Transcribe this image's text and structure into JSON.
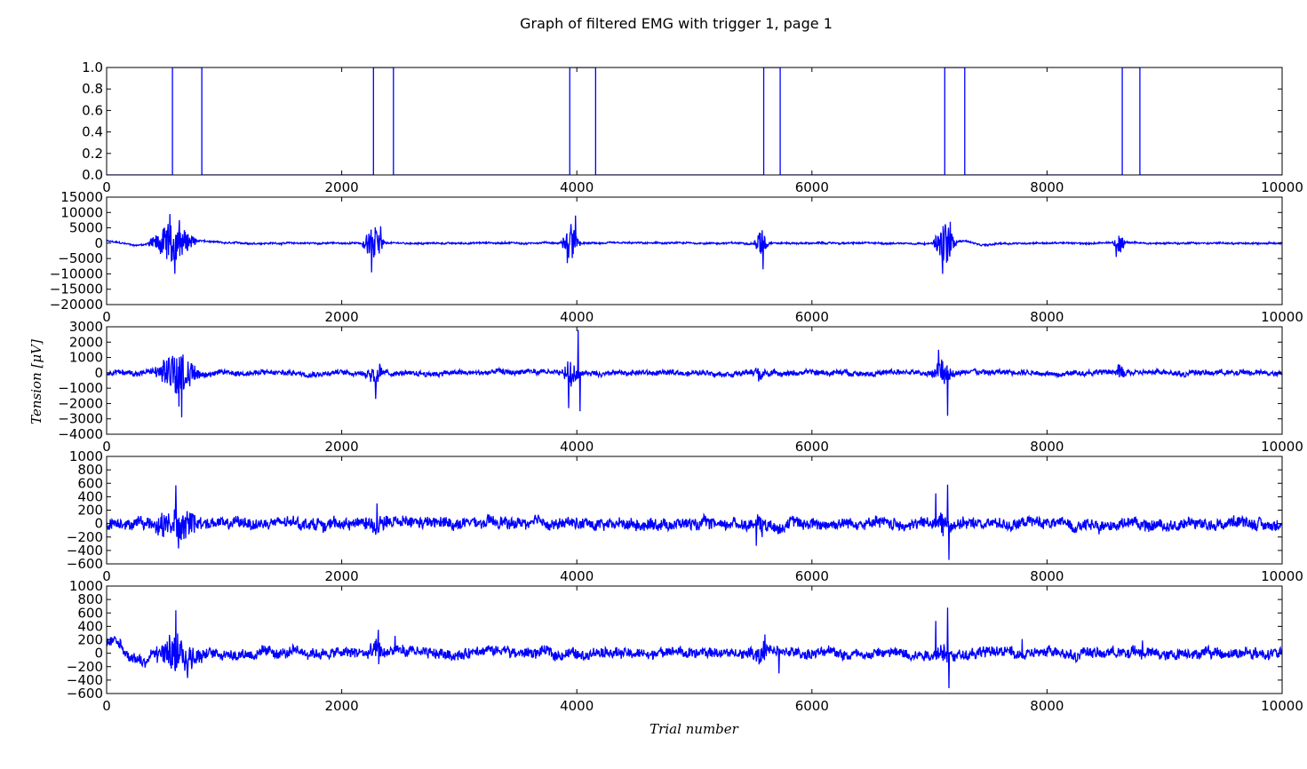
{
  "chart_data": {
    "type": "line",
    "title": "Graph of filtered EMG with trigger 1, page 1",
    "xlabel": "Trial number",
    "ylabel": "Tension [μV]",
    "grid": false,
    "line_color": "#0000ff",
    "xlim": [
      0,
      10000
    ],
    "x_ticks": [
      "0",
      "2000",
      "4000",
      "6000",
      "8000",
      "10000"
    ],
    "subplots": [
      {
        "name": "trigger",
        "ylim": [
          0,
          1
        ],
        "y_ticks": [
          "0.0",
          "0.2",
          "0.4",
          "0.6",
          "0.8",
          "1.0"
        ],
        "pulses": [
          [
            560,
            810
          ],
          [
            2270,
            2440
          ],
          [
            3940,
            4160
          ],
          [
            5590,
            5730
          ],
          [
            7130,
            7300
          ],
          [
            8640,
            8790
          ]
        ]
      },
      {
        "name": "emg-channel-1",
        "ylim": [
          -20000,
          15000
        ],
        "y_ticks": [
          "15000",
          "10000",
          "5000",
          "0",
          "-5000",
          "-10000",
          "-15000",
          "-20000"
        ],
        "baseline_noise": 250,
        "drift": [
          [
            0,
            700
          ],
          [
            250,
            -700
          ],
          [
            500,
            400
          ],
          [
            800,
            800
          ],
          [
            1000,
            0
          ],
          [
            7200,
            0
          ],
          [
            7300,
            900
          ],
          [
            7450,
            -700
          ],
          [
            7600,
            0
          ],
          [
            10000,
            0
          ]
        ],
        "bursts": [
          [
            560,
            230,
            7000
          ],
          [
            2270,
            110,
            6000
          ],
          [
            3950,
            90,
            6500
          ],
          [
            5570,
            70,
            5000
          ],
          [
            7130,
            110,
            7500
          ],
          [
            8620,
            70,
            3500
          ]
        ],
        "spikes": [
          [
            540,
            9500
          ],
          [
            550,
            -6000
          ],
          [
            580,
            -10000
          ],
          [
            620,
            7500
          ],
          [
            2255,
            -9500
          ],
          [
            2330,
            5500
          ],
          [
            3920,
            -6500
          ],
          [
            3990,
            9000
          ],
          [
            5585,
            -8500
          ],
          [
            7110,
            -10000
          ],
          [
            7175,
            7000
          ],
          [
            8590,
            -4500
          ]
        ]
      },
      {
        "name": "emg-channel-2",
        "ylim": [
          -4000,
          3000
        ],
        "y_ticks": [
          "3000",
          "2000",
          "1000",
          "0",
          "-1000",
          "-2000",
          "-3000",
          "-4000"
        ],
        "baseline_noise": 150,
        "drift": [],
        "bursts": [
          [
            600,
            230,
            1400
          ],
          [
            2290,
            110,
            900
          ],
          [
            3950,
            90,
            1000
          ],
          [
            5560,
            80,
            500
          ],
          [
            7110,
            110,
            1000
          ],
          [
            8620,
            70,
            500
          ]
        ],
        "spikes": [
          [
            640,
            -2900
          ],
          [
            615,
            -2200
          ],
          [
            560,
            1100
          ],
          [
            2290,
            -1700
          ],
          [
            3930,
            -2300
          ],
          [
            4010,
            2800
          ],
          [
            4025,
            -2500
          ],
          [
            7155,
            -2800
          ],
          [
            7075,
            1500
          ]
        ]
      },
      {
        "name": "emg-channel-3",
        "ylim": [
          -600,
          1000
        ],
        "y_ticks": [
          "1000",
          "800",
          "600",
          "400",
          "200",
          "0",
          "-200",
          "-400",
          "-600"
        ],
        "baseline_noise": 75,
        "drift": [],
        "bursts": [
          [
            600,
            250,
            280
          ],
          [
            2290,
            120,
            140
          ],
          [
            5560,
            80,
            120
          ],
          [
            7120,
            80,
            150
          ]
        ],
        "spikes": [
          [
            590,
            570
          ],
          [
            610,
            -370
          ],
          [
            7055,
            450
          ],
          [
            7155,
            580
          ],
          [
            7165,
            -540
          ],
          [
            5525,
            -330
          ],
          [
            2300,
            300
          ]
        ]
      },
      {
        "name": "emg-channel-4",
        "ylim": [
          -600,
          1000
        ],
        "y_ticks": [
          "1000",
          "800",
          "600",
          "400",
          "200",
          "0",
          "-200",
          "-400",
          "-600"
        ],
        "baseline_noise": 70,
        "drift": [
          [
            0,
            130
          ],
          [
            120,
            130
          ],
          [
            180,
            -100
          ],
          [
            300,
            -100
          ],
          [
            400,
            0
          ],
          [
            10000,
            0
          ]
        ],
        "bursts": [
          [
            600,
            250,
            300
          ],
          [
            2300,
            110,
            140
          ],
          [
            5580,
            80,
            150
          ],
          [
            7120,
            80,
            150
          ]
        ],
        "spikes": [
          [
            590,
            640
          ],
          [
            690,
            -370
          ],
          [
            7055,
            480
          ],
          [
            7155,
            680
          ],
          [
            7165,
            -520
          ],
          [
            2310,
            350
          ],
          [
            2455,
            260
          ],
          [
            5600,
            280
          ],
          [
            5720,
            -300
          ],
          [
            7790,
            210
          ],
          [
            8730,
            120
          ],
          [
            8810,
            190
          ]
        ]
      }
    ]
  }
}
